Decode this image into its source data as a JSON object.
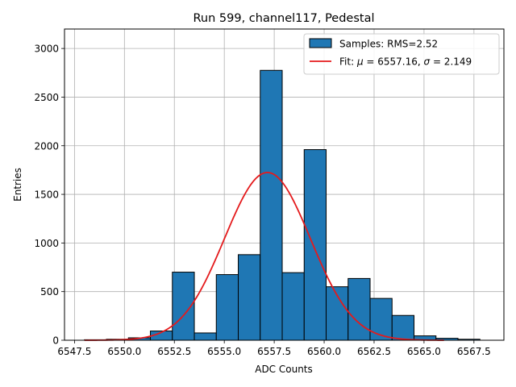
{
  "chart_data": {
    "type": "bar",
    "title": "Run 599, channel117, Pedestal",
    "xlabel": "ADC Counts",
    "ylabel": "Entries",
    "xlim": [
      6547.0,
      6569.0
    ],
    "ylim": [
      0,
      3200
    ],
    "xticks": [
      6547.5,
      6550.0,
      6552.5,
      6555.0,
      6557.5,
      6560.0,
      6562.5,
      6565.0,
      6567.5
    ],
    "xtick_labels": [
      "6547.5",
      "6550.0",
      "6552.5",
      "6555.0",
      "6557.5",
      "6560.0",
      "6562.5",
      "6565.0",
      "6567.5"
    ],
    "yticks": [
      0,
      500,
      1000,
      1500,
      2000,
      2500,
      3000
    ],
    "ytick_labels": [
      "0",
      "500",
      "1000",
      "1500",
      "2000",
      "2500",
      "3000"
    ],
    "grid": true,
    "legend_position": "top-right",
    "bar_color": "#1f77b4",
    "fit_color": "#e41a1c",
    "histogram": {
      "name": "Samples: RMS=2.52",
      "bin_edges": [
        6548,
        6549.1,
        6550.2,
        6551.3,
        6552.4,
        6553.5,
        6554.6,
        6555.7,
        6556.8,
        6557.9,
        6559.0,
        6560.1,
        6561.2,
        6562.3,
        6563.4,
        6564.5,
        6565.6,
        6566.7,
        6567.8
      ],
      "counts": [
        5,
        10,
        25,
        95,
        700,
        75,
        675,
        880,
        2775,
        695,
        1960,
        550,
        635,
        430,
        255,
        45,
        20,
        10
      ]
    },
    "fit": {
      "name_prefix": "Fit: ",
      "mu_symbol": "μ",
      "mu_text": " = 6557.16, ",
      "sigma_symbol": "σ",
      "sigma_text": " = 2.149",
      "mu": 6557.16,
      "sigma": 2.149,
      "amplitude": 1725,
      "x_range": [
        6548,
        6566
      ]
    }
  }
}
